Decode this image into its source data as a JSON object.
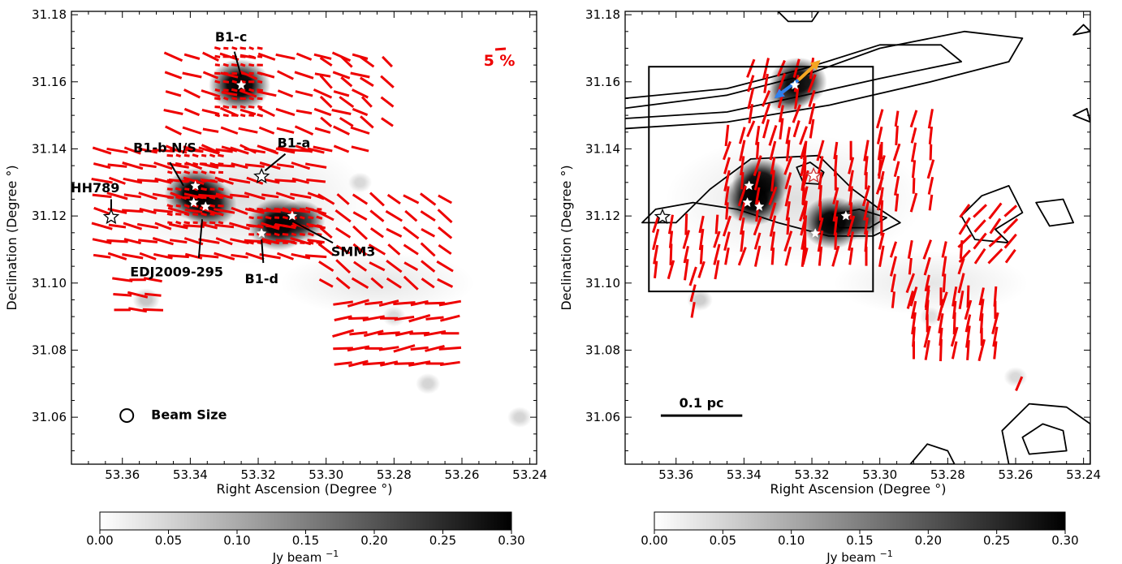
{
  "chart_data": [
    {
      "type": "heatmap",
      "panel": "left",
      "title": "",
      "xlabel": "Right Ascension (Degree °)",
      "ylabel": "Declination (Degree °)",
      "xlim": [
        53.375,
        53.238
      ],
      "ylim": [
        31.046,
        31.181
      ],
      "x_ticks": [
        "53.36",
        "53.34",
        "53.32",
        "53.30",
        "53.28",
        "53.26",
        "53.24"
      ],
      "y_ticks": [
        "31.06",
        "31.08",
        "31.10",
        "31.12",
        "31.14",
        "31.16",
        "31.18"
      ],
      "grid": false,
      "colorbar": {
        "label": "Jy beam",
        "label_superscript": "−1",
        "min": 0.0,
        "max": 0.3,
        "ticks": [
          "0.00",
          "0.05",
          "0.10",
          "0.15",
          "0.20",
          "0.25",
          "0.30"
        ]
      },
      "scale_label": "5 %",
      "beam_label": "Beam Size",
      "beam_position": {
        "ra": 53.3587,
        "dec": 31.0605
      },
      "cores": [
        {
          "ra": 53.3255,
          "dec": 31.159,
          "peak": 1.0
        },
        {
          "ra": 53.3385,
          "dec": 31.1265,
          "peak": 1.0
        },
        {
          "ra": 53.3345,
          "dec": 31.1235,
          "peak": 0.85
        },
        {
          "ra": 53.314,
          "dec": 31.1175,
          "peak": 1.0
        },
        {
          "ra": 53.3075,
          "dec": 31.1185,
          "peak": 0.7
        },
        {
          "ra": 53.353,
          "dec": 31.095,
          "peak": 0.18
        },
        {
          "ra": 53.27,
          "dec": 31.07,
          "peak": 0.12
        },
        {
          "ra": 53.243,
          "dec": 31.06,
          "peak": 0.12
        },
        {
          "ra": 53.28,
          "dec": 31.09,
          "peak": 0.1
        },
        {
          "ra": 53.29,
          "dec": 31.13,
          "peak": 0.1
        }
      ],
      "stars": [
        {
          "ra": 53.325,
          "dec": 31.159,
          "hollow": false
        },
        {
          "ra": 53.3385,
          "dec": 31.129,
          "hollow": false
        },
        {
          "ra": 53.339,
          "dec": 31.124,
          "hollow": false
        },
        {
          "ra": 53.3355,
          "dec": 31.1228,
          "hollow": false
        },
        {
          "ra": 53.319,
          "dec": 31.1318,
          "hollow": true
        },
        {
          "ra": 53.31,
          "dec": 31.12,
          "hollow": false
        },
        {
          "ra": 53.319,
          "dec": 31.1148,
          "hollow": false
        },
        {
          "ra": 53.3633,
          "dec": 31.1197,
          "hollow": true
        }
      ],
      "annotations": [
        {
          "text": "B1-c",
          "ra": 53.328,
          "dec": 31.172,
          "lra": 53.325,
          "ldec": 31.1615,
          "pra": 53.327,
          "pdec": 31.169
        },
        {
          "text": "B1-b N/S",
          "ra": 53.3475,
          "dec": 31.139,
          "lra": 53.342,
          "ldec": 31.129,
          "pra": 53.346,
          "pdec": 31.136
        },
        {
          "text": "B1-a",
          "ra": 53.3095,
          "dec": 31.1405,
          "lra": 53.318,
          "ldec": 31.1335,
          "pra": 53.312,
          "pdec": 31.1385
        },
        {
          "text": "HH789",
          "ra": 53.368,
          "dec": 31.127,
          "lra": 53.3633,
          "ldec": 31.122,
          "pra": 53.3633,
          "pdec": 31.125
        },
        {
          "text": "EDJ2009-295",
          "ra": 53.344,
          "dec": 31.102,
          "lra": 53.3365,
          "ldec": 31.119,
          "pra": 53.3375,
          "pdec": 31.1075
        },
        {
          "text": "SMM3",
          "ra": 53.292,
          "dec": 31.108,
          "lra": 53.31,
          "ldec": 31.1185,
          "pra": 53.298,
          "pdec": 31.112
        },
        {
          "text": "B1-d",
          "ra": 53.319,
          "dec": 31.1,
          "lra": 53.319,
          "ldec": 31.113,
          "pra": 53.3185,
          "pdec": 31.106
        }
      ],
      "vectors": {
        "color": "#ee0000",
        "fields": [
          {
            "ra": [
              53.332,
              53.318
            ],
            "dec": [
              31.15,
              31.17
            ],
            "step": 0.0025,
            "angle": -10,
            "length": 0.7
          },
          {
            "ra": [
              53.346,
              53.33
            ],
            "dec": [
              31.118,
              31.138
            ],
            "step": 0.0025,
            "angle": -10,
            "length": 0.7
          },
          {
            "ra": [
              53.322,
              53.302
            ],
            "dec": [
              31.112,
              31.122
            ],
            "step": 0.0025,
            "angle": -10,
            "length": 0.7
          },
          {
            "ra": [
              53.366,
              53.3
            ],
            "dec": [
              31.108,
              31.142
            ],
            "step": 0.0045,
            "angle": -12,
            "length": 2.5
          },
          {
            "ra": [
              53.345,
              53.29
            ],
            "dec": [
              31.14,
              31.172
            ],
            "step": 0.0055,
            "angle": -18,
            "length": 2.3
          },
          {
            "ra": [
              53.3,
              53.262
            ],
            "dec": [
              31.1,
              31.125
            ],
            "step": 0.005,
            "angle": -35,
            "length": 2.2
          },
          {
            "ra": [
              53.295,
              53.262
            ],
            "dec": [
              31.076,
              31.096
            ],
            "step": 0.0045,
            "angle": 8,
            "length": 2.6
          },
          {
            "ra": [
              53.36,
              53.35
            ],
            "dec": [
              31.092,
              31.104
            ],
            "step": 0.0045,
            "angle": -8,
            "length": 2.4
          },
          {
            "ra": [
              53.3,
              53.278
            ],
            "dec": [
              31.148,
              31.168
            ],
            "step": 0.006,
            "angle": -40,
            "length": 2.0
          }
        ]
      }
    },
    {
      "type": "heatmap",
      "panel": "right",
      "title": "",
      "xlabel": "Right Ascension (Degree °)",
      "ylabel": "Declination (Degree °)",
      "xlim": [
        53.375,
        53.238
      ],
      "ylim": [
        31.046,
        31.181
      ],
      "x_ticks": [
        "53.36",
        "53.34",
        "53.32",
        "53.30",
        "53.28",
        "53.26",
        "53.24"
      ],
      "y_ticks": [
        "31.06",
        "31.08",
        "31.10",
        "31.12",
        "31.14",
        "31.16",
        "31.18"
      ],
      "grid": false,
      "colorbar": {
        "label": "Jy beam",
        "label_superscript": "−1",
        "min": 0.0,
        "max": 0.3,
        "ticks": [
          "0.00",
          "0.05",
          "0.10",
          "0.15",
          "0.20",
          "0.25",
          "0.30"
        ]
      },
      "scale_bar_label": "0.1 pc",
      "scale_bar": {
        "ra": [
          53.3645,
          53.3405
        ],
        "dec": 31.0605
      },
      "box": {
        "ra": [
          53.368,
          53.302
        ],
        "dec": [
          31.0975,
          31.1645
        ]
      },
      "arrows": [
        {
          "from_ra": 53.324,
          "from_dec": 31.1605,
          "to_ra": 53.318,
          "to_dec": 31.166,
          "color": "#f5a623"
        },
        {
          "from_ra": 53.324,
          "from_dec": 31.1605,
          "to_ra": 53.3305,
          "to_dec": 31.1555,
          "color": "#2f80ed"
        }
      ],
      "contours": [
        {
          "points": [
            [
              53.376,
              31.152
            ],
            [
              53.345,
              31.156
            ],
            [
              53.322,
              31.162
            ],
            [
              53.3,
              31.17
            ],
            [
              53.275,
              31.175
            ],
            [
              53.258,
              31.173
            ],
            [
              53.262,
              31.166
            ],
            [
              53.285,
              31.16
            ],
            [
              53.315,
              31.153
            ],
            [
              53.345,
              31.148
            ],
            [
              53.376,
              31.146
            ]
          ]
        },
        {
          "points": [
            [
              53.376,
              31.155
            ],
            [
              53.345,
              31.158
            ],
            [
              53.322,
              31.164
            ],
            [
              53.3,
              31.171
            ],
            [
              53.282,
              31.171
            ],
            [
              53.276,
              31.166
            ],
            [
              53.3,
              31.161
            ],
            [
              53.322,
              31.156
            ],
            [
              53.345,
              31.151
            ],
            [
              53.376,
              31.149
            ]
          ]
        },
        {
          "points": [
            [
              53.338,
              31.137
            ],
            [
              53.318,
              31.138
            ],
            [
              53.308,
              31.128
            ],
            [
              53.3,
              31.122
            ],
            [
              53.294,
              31.118
            ],
            [
              53.302,
              31.114
            ],
            [
              53.315,
              31.114
            ],
            [
              53.33,
              31.118
            ],
            [
              53.342,
              31.122
            ],
            [
              53.355,
              31.124
            ],
            [
              53.366,
              31.122
            ],
            [
              53.37,
              31.118
            ],
            [
              53.36,
              31.118
            ],
            [
              53.35,
              31.128
            ],
            [
              53.338,
              31.137
            ]
          ]
        },
        {
          "points": [
            [
              53.3245,
              31.1345
            ],
            [
              53.3205,
              31.136
            ],
            [
              53.3165,
              31.133
            ],
            [
              53.318,
              31.1295
            ],
            [
              53.3225,
              31.1298
            ]
          ]
        },
        {
          "points": [
            [
              53.314,
              31.1205
            ],
            [
              53.306,
              31.122
            ],
            [
              53.298,
              31.1195
            ],
            [
              53.303,
              31.1165
            ],
            [
              53.312,
              31.1165
            ]
          ]
        },
        {
          "points": [
            [
              53.27,
              31.126
            ],
            [
              53.262,
              31.129
            ],
            [
              53.258,
              31.121
            ],
            [
              53.266,
              31.116
            ],
            [
              53.262,
              31.112
            ],
            [
              53.272,
              31.113
            ],
            [
              53.276,
              31.12
            ]
          ]
        },
        {
          "points": [
            [
              53.254,
              31.124
            ],
            [
              53.246,
              31.125
            ],
            [
              53.243,
              31.118
            ],
            [
              53.25,
              31.117
            ]
          ]
        },
        {
          "points": [
            [
              53.262,
              31.046
            ],
            [
              53.264,
              31.056
            ],
            [
              53.256,
              31.064
            ],
            [
              53.245,
              31.063
            ],
            [
              53.238,
              31.058
            ],
            [
              53.238,
              31.046
            ]
          ]
        },
        {
          "points": [
            [
              53.256,
              31.049
            ],
            [
              53.258,
              31.054
            ],
            [
              53.252,
              31.058
            ],
            [
              53.246,
              31.056
            ],
            [
              53.245,
              31.05
            ]
          ]
        },
        {
          "points": [
            [
              53.291,
              31.046
            ],
            [
              53.286,
              31.052
            ],
            [
              53.28,
              31.05
            ],
            [
              53.278,
              31.046
            ]
          ]
        },
        {
          "points": [
            [
              53.33,
              31.181
            ],
            [
              53.327,
              31.178
            ],
            [
              53.32,
              31.178
            ],
            [
              53.318,
              31.181
            ]
          ]
        },
        {
          "points": [
            [
              53.243,
              31.174
            ],
            [
              53.24,
              31.177
            ],
            [
              53.238,
              31.175
            ]
          ]
        },
        {
          "points": [
            [
              53.243,
              31.15
            ],
            [
              53.239,
              31.152
            ],
            [
              53.238,
              31.148
            ]
          ]
        }
      ],
      "cores": [
        {
          "ra": 53.324,
          "dec": 31.16,
          "peak": 0.9
        },
        {
          "ra": 53.327,
          "dec": 31.156,
          "peak": 0.6
        },
        {
          "ra": 53.337,
          "dec": 31.125,
          "peak": 1.0
        },
        {
          "ra": 53.335,
          "dec": 31.13,
          "peak": 0.9
        },
        {
          "ra": 53.314,
          "dec": 31.118,
          "peak": 1.0
        },
        {
          "ra": 53.306,
          "dec": 31.119,
          "peak": 0.7
        },
        {
          "ra": 53.353,
          "dec": 31.095,
          "peak": 0.15
        },
        {
          "ra": 53.26,
          "dec": 31.072,
          "peak": 0.1
        },
        {
          "ra": 53.285,
          "dec": 31.09,
          "peak": 0.08
        }
      ],
      "stars": [
        {
          "ra": 53.325,
          "dec": 31.159,
          "hollow": false
        },
        {
          "ra": 53.3385,
          "dec": 31.129,
          "hollow": false
        },
        {
          "ra": 53.339,
          "dec": 31.124,
          "hollow": false
        },
        {
          "ra": 53.3355,
          "dec": 31.1228,
          "hollow": false
        },
        {
          "ra": 53.3195,
          "dec": 31.132,
          "hollow": true,
          "tint": "#cc3333"
        },
        {
          "ra": 53.31,
          "dec": 31.12,
          "hollow": false
        },
        {
          "ra": 53.319,
          "dec": 31.1148,
          "hollow": false
        },
        {
          "ra": 53.364,
          "dec": 31.1197,
          "hollow": true
        }
      ],
      "vectors": {
        "color": "#ee0000",
        "fields": [
          {
            "ra": [
              53.338,
              53.316
            ],
            "dec": [
              31.146,
              31.168
            ],
            "step": 0.0045,
            "angle": 75,
            "length": 2.5
          },
          {
            "ra": [
              53.345,
              53.322
            ],
            "dec": [
              31.108,
              31.146
            ],
            "step": 0.0045,
            "angle": 78,
            "length": 2.5
          },
          {
            "ra": [
              53.322,
              53.296
            ],
            "dec": [
              31.108,
              31.14
            ],
            "step": 0.0045,
            "angle": 82,
            "length": 2.5
          },
          {
            "ra": [
              53.366,
              53.348
            ],
            "dec": [
              31.104,
              31.12
            ],
            "step": 0.0045,
            "angle": 80,
            "length": 2.5
          },
          {
            "ra": [
              53.3,
              53.284
            ],
            "dec": [
              31.124,
              31.15
            ],
            "step": 0.005,
            "angle": 80,
            "length": 2.3
          },
          {
            "ra": [
              53.296,
              53.272
            ],
            "dec": [
              31.095,
              31.11
            ],
            "step": 0.005,
            "angle": 78,
            "length": 2.4
          },
          {
            "ra": [
              53.275,
              53.258
            ],
            "dec": [
              31.108,
              31.124
            ],
            "step": 0.0045,
            "angle": 50,
            "length": 2.3
          },
          {
            "ra": [
              53.29,
              53.263
            ],
            "dec": [
              31.08,
              31.096
            ],
            "step": 0.004,
            "angle": 82,
            "length": 2.6
          },
          {
            "ra": [
              53.355,
              53.352
            ],
            "dec": [
              31.092,
              31.103
            ],
            "step": 0.005,
            "angle": 80,
            "length": 2.3
          },
          {
            "ra": [
              53.259,
              53.255
            ],
            "dec": [
              31.07,
              31.072
            ],
            "step": 0.005,
            "angle": 75,
            "length": 2.2
          }
        ]
      }
    }
  ]
}
